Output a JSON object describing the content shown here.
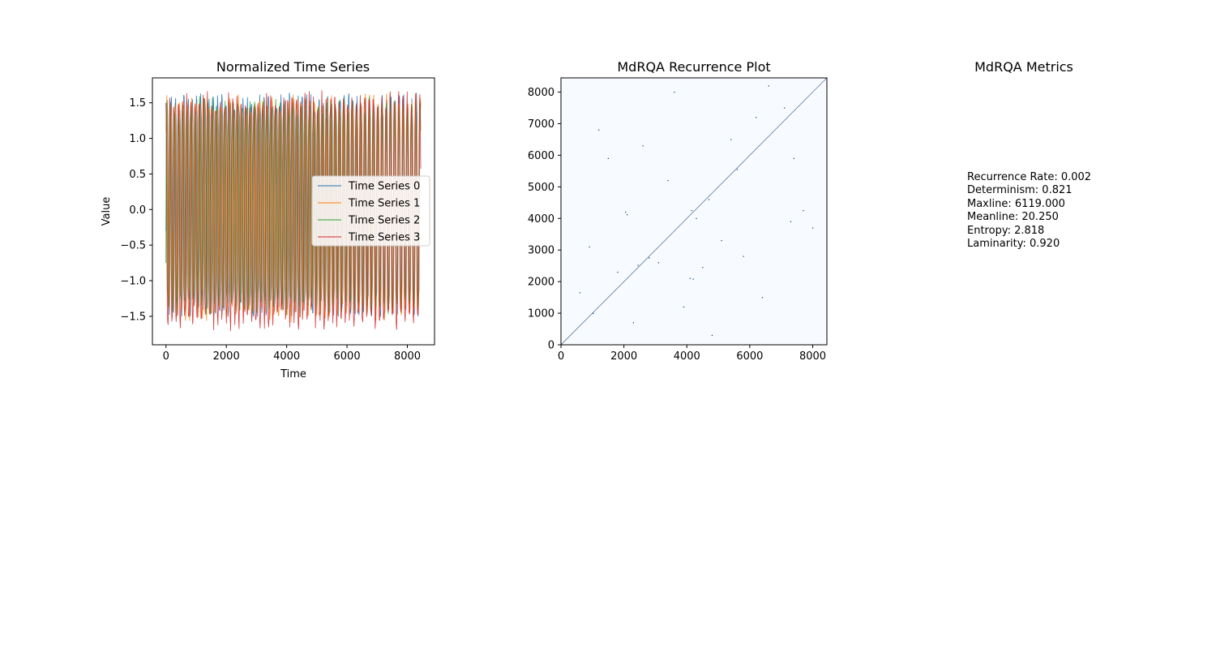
{
  "chart_data": [
    {
      "type": "line",
      "title": "Normalized Time Series",
      "xlabel": "Time",
      "ylabel": "Value",
      "xlim": [
        -450,
        8900
      ],
      "ylim": [
        -1.9,
        1.85
      ],
      "xticks": [
        0,
        2000,
        4000,
        6000,
        8000
      ],
      "yticks": [
        -1.5,
        -1.0,
        -0.5,
        0.0,
        0.5,
        1.0,
        1.5
      ],
      "xtick_labels": [
        "0",
        "2000",
        "4000",
        "6000",
        "8000"
      ],
      "ytick_labels": [
        "−1.5",
        "−1.0",
        "−0.5",
        "0.0",
        "0.5",
        "1.0",
        "1.5"
      ],
      "legend_placement": "center-right",
      "n_points": 8450,
      "series": [
        {
          "name": "Time Series 0",
          "color": "#1f77b4",
          "approx_period": 140,
          "phase": 0.0,
          "min": -1.55,
          "max": 1.68,
          "start": -0.3
        },
        {
          "name": "Time Series 1",
          "color": "#ff7f0e",
          "approx_period": 140,
          "phase": 0.6,
          "min": -1.6,
          "max": 1.65,
          "start": 1.1
        },
        {
          "name": "Time Series 2",
          "color": "#2ca02c",
          "approx_period": 140,
          "phase": 1.3,
          "min": -1.5,
          "max": 1.6,
          "start": -0.75
        },
        {
          "name": "Time Series 3",
          "color": "#d62728",
          "approx_period": 140,
          "phase": 2.0,
          "min": -1.72,
          "max": 1.68,
          "start": 1.5
        }
      ]
    },
    {
      "type": "heatmap",
      "title": "MdRQA Recurrence Plot",
      "xlim": [
        0,
        8450
      ],
      "ylim": [
        0,
        8450
      ],
      "xticks": [
        0,
        2000,
        4000,
        6000,
        8000
      ],
      "yticks": [
        0,
        1000,
        2000,
        3000,
        4000,
        5000,
        6000,
        7000,
        8000
      ],
      "xtick_labels": [
        "0",
        "2000",
        "4000",
        "6000",
        "8000"
      ],
      "ytick_labels": [
        "0",
        "1000",
        "2000",
        "3000",
        "4000",
        "5000",
        "6000",
        "7000",
        "8000"
      ],
      "background_color": "#f7fbff",
      "point_color": "#08306b",
      "main_diagonal": true,
      "recurrence_points": [
        [
          600,
          1650
        ],
        [
          1020,
          1000
        ],
        [
          2050,
          4200
        ],
        [
          2100,
          4120
        ],
        [
          2450,
          2520
        ],
        [
          2800,
          2750
        ],
        [
          3100,
          2600
        ],
        [
          4100,
          2100
        ],
        [
          4200,
          2080
        ],
        [
          4150,
          4250
        ],
        [
          4300,
          4000
        ],
        [
          4500,
          2450
        ],
        [
          4700,
          4600
        ],
        [
          5100,
          3300
        ],
        [
          5400,
          6500
        ],
        [
          6600,
          8200
        ],
        [
          7100,
          7500
        ],
        [
          7300,
          3900
        ],
        [
          7700,
          4250
        ],
        [
          3400,
          5200
        ],
        [
          1500,
          5900
        ],
        [
          2600,
          6300
        ],
        [
          3600,
          8000
        ],
        [
          5800,
          2800
        ],
        [
          6400,
          1500
        ],
        [
          900,
          3100
        ],
        [
          1800,
          2300
        ],
        [
          3900,
          1200
        ],
        [
          5600,
          5550
        ],
        [
          8000,
          3700
        ],
        [
          2300,
          700
        ],
        [
          4800,
          300
        ],
        [
          6200,
          7200
        ],
        [
          7400,
          5900
        ],
        [
          1200,
          6800
        ]
      ]
    }
  ],
  "metrics": {
    "title": "MdRQA Metrics",
    "lines": [
      "Recurrence Rate: 0.002",
      "Determinism: 0.821",
      "Maxline: 6119.000",
      "Meanline: 20.250",
      "Entropy: 2.818",
      "Laminarity: 0.920"
    ]
  }
}
